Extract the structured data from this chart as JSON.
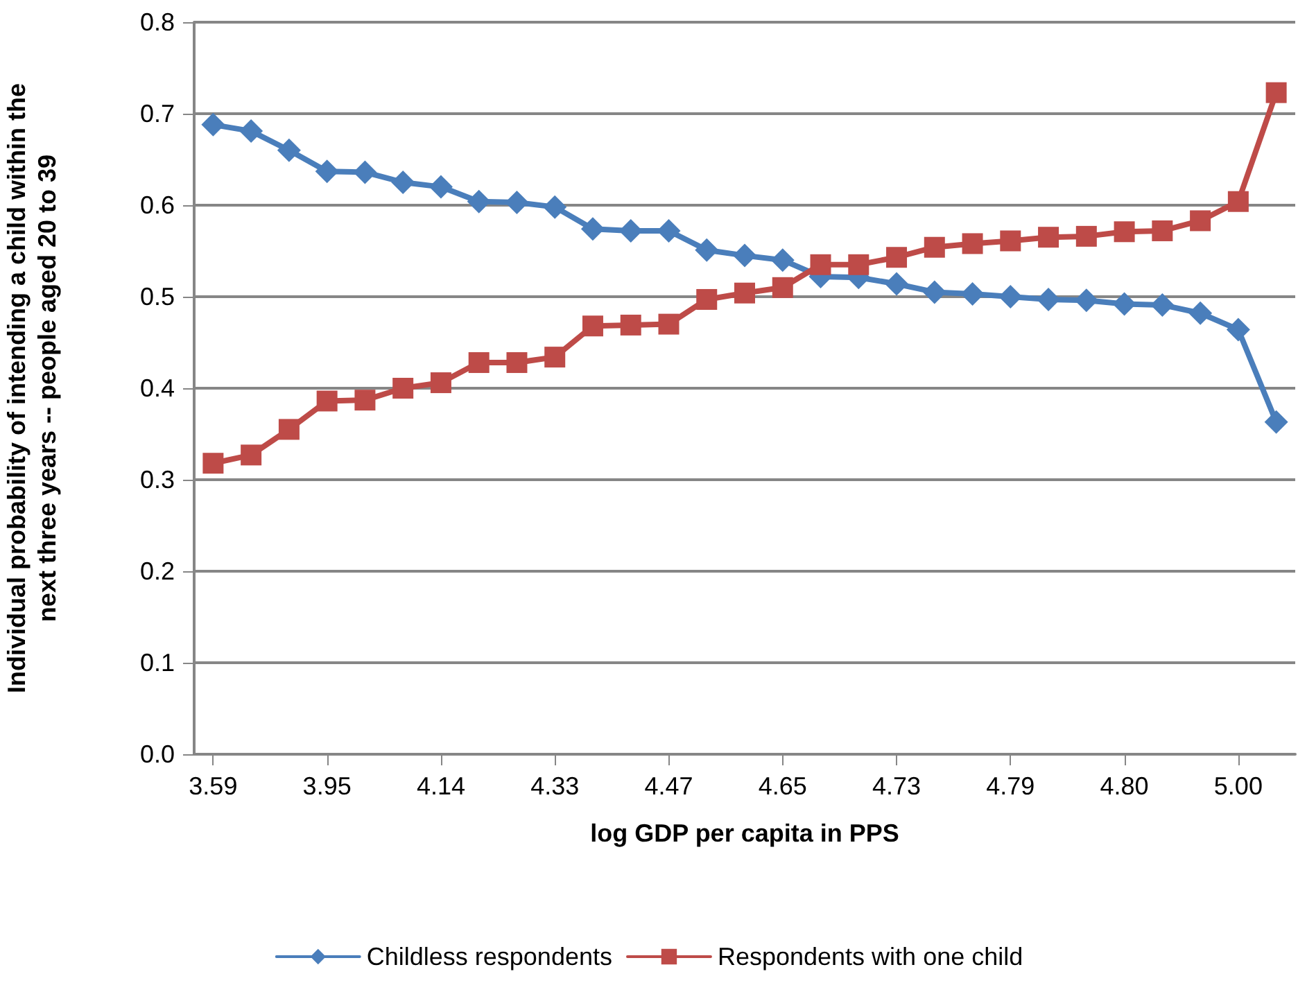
{
  "chart_data": {
    "type": "line",
    "xlabel": "log GDP per capita in PPS",
    "ylabel": "Individual probability of intending a child within the next three years -- people aged 20 to 39",
    "categories": [
      "3.59",
      null,
      null,
      "3.95",
      null,
      null,
      "4.14",
      null,
      null,
      "4.33",
      null,
      null,
      "4.47",
      null,
      null,
      "4.65",
      null,
      null,
      "4.73",
      null,
      null,
      "4.79",
      null,
      null,
      "4.80",
      null,
      null,
      "5.00",
      null
    ],
    "series": [
      {
        "name": "Childless respondents",
        "color": "#4a7ebb",
        "marker": "diamond",
        "values": [
          0.688,
          0.681,
          0.66,
          0.637,
          0.636,
          0.625,
          0.62,
          0.604,
          0.603,
          0.598,
          0.574,
          0.572,
          0.572,
          0.551,
          0.545,
          0.54,
          0.522,
          0.521,
          0.514,
          0.505,
          0.503,
          0.5,
          0.497,
          0.496,
          0.492,
          0.491,
          0.482,
          0.464,
          0.363
        ]
      },
      {
        "name": "Respondents with one child",
        "color": "#be4b48",
        "marker": "square",
        "values": [
          0.318,
          0.327,
          0.355,
          0.386,
          0.387,
          0.4,
          0.406,
          0.428,
          0.428,
          0.434,
          0.468,
          0.469,
          0.47,
          0.497,
          0.504,
          0.51,
          0.535,
          0.535,
          0.543,
          0.554,
          0.558,
          0.561,
          0.565,
          0.566,
          0.571,
          0.572,
          0.583,
          0.604,
          0.723
        ]
      }
    ],
    "ylim": [
      0,
      0.8
    ],
    "yticks": [
      {
        "value": 0,
        "label": "0.0"
      },
      0.1,
      0.2,
      0.3,
      0.4,
      0.5,
      0.6,
      0.7,
      0.8
    ],
    "grid": "y",
    "legend": "bottom"
  }
}
